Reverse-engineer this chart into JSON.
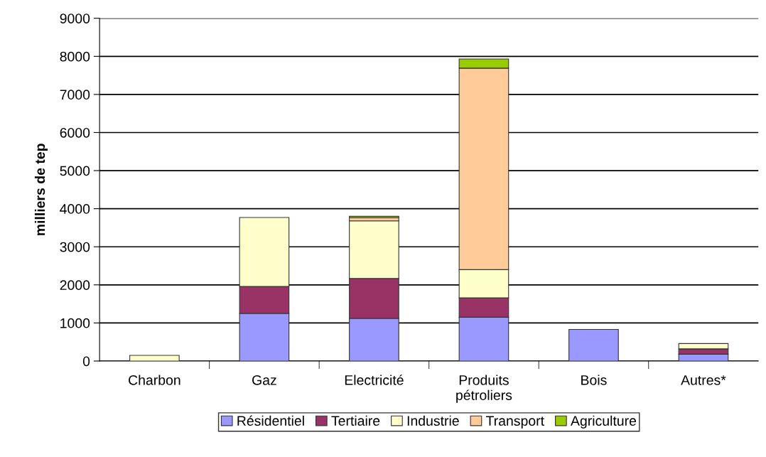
{
  "chart_data": {
    "type": "bar",
    "stacked": true,
    "ylabel": "milliers de tep",
    "categories": [
      "Charbon",
      "Gaz",
      "Electricité",
      "Produits\npétroliers",
      "Bois",
      "Autres*"
    ],
    "series": [
      {
        "name": "Résidentiel",
        "color": "#9999ff",
        "values": [
          null,
          1250,
          1120,
          1150,
          830,
          180
        ]
      },
      {
        "name": "Tertiaire",
        "color": "#993366",
        "values": [
          null,
          710,
          1050,
          510,
          null,
          140
        ]
      },
      {
        "name": "Industrie",
        "color": "#ffffcc",
        "values": [
          150,
          1810,
          1510,
          740,
          null,
          140
        ]
      },
      {
        "name": "Transport",
        "color": "#ffcc99",
        "values": [
          null,
          null,
          80,
          5290,
          null,
          null
        ]
      },
      {
        "name": "Agriculture",
        "color": "#99cc00",
        "values": [
          null,
          null,
          40,
          240,
          null,
          null
        ]
      }
    ],
    "ylim": [
      0,
      9000
    ],
    "yticks": [
      0,
      1000,
      2000,
      3000,
      4000,
      5000,
      6000,
      7000,
      8000,
      9000
    ],
    "grid": "y",
    "legend": "bottom"
  }
}
